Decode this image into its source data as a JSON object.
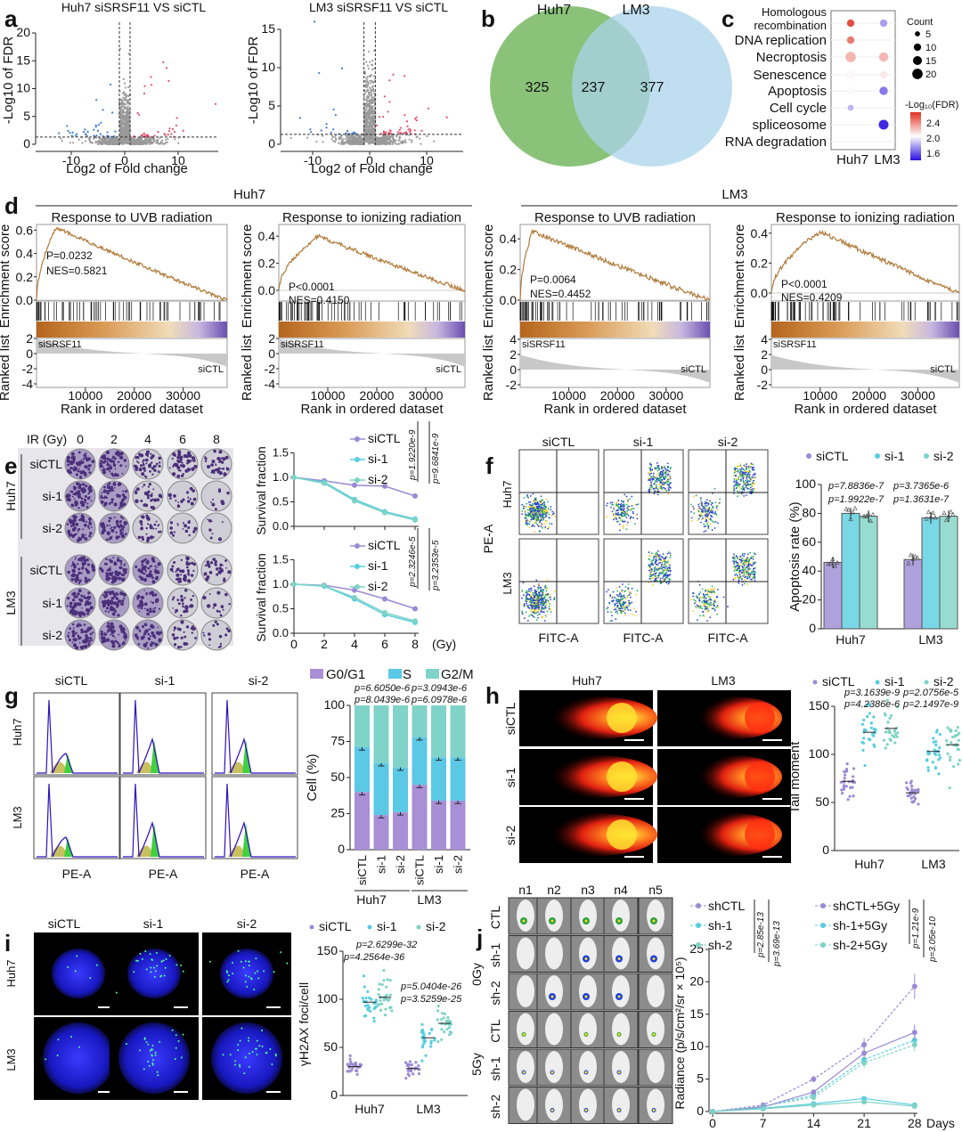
{
  "panel_labels": [
    "a",
    "b",
    "c",
    "d",
    "e",
    "f",
    "g",
    "h",
    "i",
    "j"
  ],
  "colors": {
    "siCTL": "#9b8ad3",
    "si1": "#58cde0",
    "si2": "#7ed3c5",
    "up": "#e0506a",
    "down": "#3d7cc9",
    "ns": "#9a9a9a",
    "venn_huh7": "#7dbb6a",
    "venn_lm3": "#a9d3ea",
    "G0G1": "#a98fd6",
    "S": "#5bc8e6",
    "G2M": "#7fd3c9"
  },
  "d_groups": [
    "Huh7",
    "LM3"
  ],
  "e_images": {
    "header": "IR (Gy)",
    "doses": [
      "0",
      "2",
      "4",
      "6",
      "8"
    ],
    "rows": [
      "siCTL",
      "si-1",
      "si-2",
      "siCTL",
      "si-1",
      "si-2"
    ],
    "groups": [
      "Huh7",
      "LM3"
    ]
  },
  "f_images": {
    "columns": [
      "siCTL",
      "si-1",
      "si-2"
    ],
    "rows": [
      "Huh7",
      "LM3"
    ],
    "ylabel": "PE-A",
    "xlabel": "FITC-A"
  },
  "g_images": {
    "columns": [
      "siCTL",
      "si-1",
      "si-2"
    ],
    "rows": [
      "Huh7",
      "LM3"
    ],
    "xlabel": "PE-A"
  },
  "h_images": {
    "columns": [
      "Huh7",
      "LM3"
    ],
    "rows": [
      "siCTL",
      "si-1",
      "si-2"
    ]
  },
  "i_images": {
    "columns": [
      "siCTL",
      "si-1",
      "si-2"
    ],
    "rows": [
      "Huh7",
      "LM3"
    ]
  },
  "j_images": {
    "columns": [
      "n1",
      "n2",
      "n3",
      "n4",
      "n5"
    ],
    "rows": [
      "CTL",
      "sh-1",
      "sh-2",
      "CTL",
      "sh-1",
      "sh-2"
    ],
    "groups": [
      "0Gy",
      "5Gy"
    ]
  },
  "chart_data": [
    {
      "type": "scatter",
      "title": "Huh7 siSRSF11 VS siCTL",
      "xlabel": "Log2 of Fold change",
      "ylabel": "-Log10 of FDR",
      "xticks": [
        "-10",
        "0",
        "10"
      ],
      "yticks": [
        "0",
        "5",
        "10",
        "15",
        "20"
      ],
      "xlim": [
        -17,
        17
      ],
      "ylim": [
        0,
        21
      ]
    },
    {
      "type": "scatter",
      "title": "LM3 siSRSF11 VS siCTL",
      "xlabel": "Log2 of Fold change",
      "ylabel": "-Log10 of FDR",
      "xticks": [
        "-10",
        "0",
        "10"
      ],
      "yticks": [
        "0",
        "5",
        "10",
        "15"
      ],
      "xlim": [
        -15,
        17
      ],
      "ylim": [
        0,
        16
      ]
    },
    {
      "type": "venn",
      "sets": [
        "Huh7",
        "LM3"
      ],
      "values": [
        "325",
        "237",
        "377"
      ]
    },
    {
      "type": "scatter",
      "subtype": "dotplot",
      "columns": [
        "Huh7",
        "LM3"
      ],
      "terms": [
        {
          "label": [
            "Homologous",
            "recombination"
          ],
          "Huh7": {
            "count": 8,
            "fdr": 2.6
          },
          "LM3": {
            "count": 8,
            "fdr": 1.8
          }
        },
        {
          "label": [
            "DNA replication"
          ],
          "Huh7": {
            "count": 8,
            "fdr": 2.45
          },
          "LM3": null
        },
        {
          "label": [
            "Necroptosis"
          ],
          "Huh7": {
            "count": 15,
            "fdr": 2.25
          },
          "LM3": {
            "count": 12,
            "fdr": 2.25
          }
        },
        {
          "label": [
            "Senescence"
          ],
          "Huh7": {
            "count": 7,
            "fdr": 2.02
          },
          "LM3": {
            "count": 6,
            "fdr": 2.08
          }
        },
        {
          "label": [
            "Apoptosis"
          ],
          "Huh7": {
            "count": 5,
            "fdr": 2.0
          },
          "LM3": {
            "count": 10,
            "fdr": 1.72
          }
        },
        {
          "label": [
            "Cell cycle"
          ],
          "Huh7": {
            "count": 5,
            "fdr": 1.85
          },
          "LM3": null
        },
        {
          "label": [
            "spliceosome"
          ],
          "Huh7": null,
          "LM3": {
            "count": 14,
            "fdr": 1.55
          }
        },
        {
          "label": [
            "RNA degradation"
          ],
          "Huh7": null,
          "LM3": null
        }
      ],
      "size_legend": {
        "title": "Count",
        "values": [
          "5",
          "10",
          "15",
          "20"
        ]
      },
      "color_legend": {
        "title": "-Log₁₀(FDR)",
        "ticks": [
          "2.4",
          "2.0",
          "1.6"
        ],
        "range": [
          1.5,
          2.7
        ]
      }
    },
    {
      "type": "line",
      "group": "Huh7",
      "title": "Response to UVB radiation",
      "ylabel": "Enrichment score",
      "ylabel2": "Ranked list",
      "xlabel": "Rank in ordered dataset",
      "p": "P=0.0232",
      "nes": "NES=0.5821",
      "es_peak": 0.62,
      "es_peak_rank": 4000,
      "n_ranks": 39000,
      "es_ticks": [
        "0.6",
        "0.4",
        "0.2",
        "0.0"
      ],
      "rank_ticks": [
        "2",
        "0",
        "-2",
        "-4"
      ],
      "xticks": [
        "10000",
        "20000",
        "30000"
      ],
      "pos_label": "siSRSF11",
      "neg_label": "siCTL"
    },
    {
      "type": "line",
      "group": "Huh7",
      "title": "Response to ionizing radiation",
      "ylabel": "Enrichment score",
      "ylabel2": "Ranked list",
      "xlabel": "Rank in ordered dataset",
      "p": "P<0.0001",
      "nes": "NES=0.4150",
      "es_peak": 0.4,
      "es_peak_rank": 8000,
      "n_ranks": 38000,
      "es_ticks": [
        "0.4",
        "0.2",
        "0.0"
      ],
      "rank_ticks": [
        "2",
        "0",
        "-2",
        "-4"
      ],
      "xticks": [
        "10000",
        "20000",
        "30000"
      ],
      "pos_label": "siSRSF11",
      "neg_label": "siCTL"
    },
    {
      "type": "line",
      "group": "LM3",
      "title": "Response to UVB radiation",
      "ylabel": "Enrichment score",
      "ylabel2": "Ranked list",
      "xlabel": "Rank in ordered dataset",
      "p": "P=0.0064",
      "nes": "NES=0.4452",
      "es_peak": 0.45,
      "es_peak_rank": 2500,
      "n_ranks": 39000,
      "es_ticks": [
        "0.4",
        "0.2",
        "0.0"
      ],
      "rank_ticks": [
        "4",
        "2",
        "0",
        "-2"
      ],
      "xticks": [
        "10000",
        "20000",
        "30000"
      ],
      "pos_label": "siSRSF11",
      "neg_label": "siCTL"
    },
    {
      "type": "line",
      "group": "LM3",
      "title": "Response to ionizing radiation",
      "ylabel": "Enrichment score",
      "ylabel2": "Ranked list",
      "xlabel": "Rank in ordered dataset",
      "p": "P<0.0001",
      "nes": "NES=0.4209",
      "es_peak": 0.41,
      "es_peak_rank": 10000,
      "n_ranks": 38500,
      "es_ticks": [
        "0.4",
        "0.2",
        "0.0"
      ],
      "rank_ticks": [
        "4",
        "2",
        "0",
        "-2"
      ],
      "xticks": [
        "10000",
        "20000",
        "30000"
      ],
      "pos_label": "siSRSF11",
      "neg_label": "siCTL"
    },
    {
      "type": "line",
      "group": "Huh7",
      "ylabel": "Survival fraction",
      "x": [
        0,
        2,
        4,
        6,
        8
      ],
      "xticks": [
        "0",
        "2",
        "4",
        "6",
        "8"
      ],
      "yticks": [
        "0.0",
        "0.5",
        "1.0",
        "1.5"
      ],
      "ylim": [
        0,
        1.5
      ],
      "series": [
        {
          "name": "siCTL",
          "values": [
            1,
            0.93,
            0.84,
            0.82,
            0.62
          ]
        },
        {
          "name": "si-1",
          "values": [
            1,
            0.9,
            0.55,
            0.3,
            0.15
          ]
        },
        {
          "name": "si-2",
          "values": [
            1,
            0.88,
            0.52,
            0.28,
            0.13
          ]
        }
      ],
      "pvalues": [
        "p=1.9220e-9",
        "p=9.6841e-9"
      ]
    },
    {
      "type": "line",
      "group": "LM3",
      "ylabel": "Survival fraction",
      "xunit": "(Gy)",
      "x": [
        0,
        2,
        4,
        6,
        8
      ],
      "xticks": [
        "0",
        "2",
        "4",
        "6",
        "8"
      ],
      "yticks": [
        "0.0",
        "0.5",
        "1.0",
        "1.5"
      ],
      "ylim": [
        0,
        1.5
      ],
      "series": [
        {
          "name": "siCTL",
          "values": [
            1,
            0.98,
            0.88,
            0.7,
            0.5
          ]
        },
        {
          "name": "si-1",
          "values": [
            1,
            0.96,
            0.7,
            0.38,
            0.22
          ]
        },
        {
          "name": "si-2",
          "values": [
            1,
            0.97,
            0.73,
            0.42,
            0.25
          ]
        }
      ],
      "pvalues": [
        "p=2.3246e-5",
        "p=3.2353e-5"
      ]
    },
    {
      "type": "bar",
      "ylabel": "Apoptosis rate (%)",
      "categories": [
        "Huh7",
        "LM3"
      ],
      "yticks": [
        "0",
        "20",
        "40",
        "60",
        "80",
        "100"
      ],
      "ylim": [
        0,
        100
      ],
      "series": [
        {
          "name": "siCTL",
          "values": [
            46,
            48
          ]
        },
        {
          "name": "si-1",
          "values": [
            80,
            77
          ]
        },
        {
          "name": "si-2",
          "values": [
            78,
            78
          ]
        }
      ],
      "pvalues": [
        "p=7.8836e-7",
        "p=1.9922e-7",
        "p=3.7365e-6",
        "p=1.3631e-7"
      ]
    },
    {
      "type": "bar",
      "stacked": true,
      "ylabel": "Cell (%)",
      "categories": [
        "siCTL",
        "si-1",
        "si-2",
        "siCTL",
        "si-1",
        "si-2"
      ],
      "groups": [
        "Huh7",
        "LM3"
      ],
      "yticks": [
        "0",
        "25",
        "50",
        "75",
        "100"
      ],
      "ylim": [
        0,
        100
      ],
      "series": [
        {
          "name": "G0/G1",
          "values": [
            40,
            24,
            26,
            45,
            34,
            34
          ]
        },
        {
          "name": "S",
          "values": [
            31,
            36,
            31,
            33,
            30,
            30
          ]
        },
        {
          "name": "G2/M",
          "values": [
            29,
            40,
            43,
            22,
            36,
            36
          ]
        }
      ],
      "pvalues": [
        "p=6.6050e-6",
        "p=3.0943e-6",
        "p=8.0439e-6",
        "p=6.0978e-6"
      ]
    },
    {
      "type": "scatter",
      "ylabel": "Tail moment",
      "categories": [
        "Huh7",
        "LM3"
      ],
      "yticks": [
        "0",
        "50",
        "100",
        "150"
      ],
      "ylim": [
        0,
        150
      ],
      "series": [
        {
          "name": "siCTL",
          "means": [
            72,
            60
          ]
        },
        {
          "name": "si-1",
          "means": [
            123,
            103
          ]
        },
        {
          "name": "si-2",
          "means": [
            127,
            110
          ]
        }
      ],
      "pvalues": [
        "p=3.1639e-9",
        "p=2.0756e-5",
        "p=4.2386e-6",
        "p=2.1497e-9"
      ]
    },
    {
      "type": "scatter",
      "ylabel": "γH2AX foci/cell",
      "categories": [
        "Huh7",
        "LM3"
      ],
      "yticks": [
        "0",
        "50",
        "100",
        "150"
      ],
      "ylim": [
        0,
        150
      ],
      "series": [
        {
          "name": "siCTL",
          "means": [
            30,
            28
          ]
        },
        {
          "name": "si-1",
          "means": [
            97,
            60
          ]
        },
        {
          "name": "si-2",
          "means": [
            102,
            75
          ]
        }
      ],
      "pvalues": [
        "p=2.6299e-32",
        "p=4.2564e-36",
        "p=5.0404e-26",
        "p=3.5259e-25"
      ]
    },
    {
      "type": "line",
      "ylabel": "Radiance (p/s/cm²/sr × 10⁵)",
      "xlabel": "Days",
      "x": [
        0,
        7,
        14,
        21,
        28
      ],
      "xticks": [
        "0",
        "7",
        "14",
        "21",
        "28"
      ],
      "yticks": [
        "0",
        "5",
        "10",
        "15",
        "20",
        "25"
      ],
      "ylim": [
        0,
        25
      ],
      "series": [
        {
          "name": "shCTL",
          "values": [
            0,
            1,
            5,
            10.3,
            19.3
          ]
        },
        {
          "name": "sh-1",
          "values": [
            0,
            0.8,
            2.5,
            8,
            11
          ]
        },
        {
          "name": "sh-2",
          "values": [
            0,
            0.8,
            2.2,
            7.5,
            10.3
          ]
        },
        {
          "name": "shCTL+5Gy",
          "values": [
            0,
            0.7,
            3,
            9,
            12.2
          ]
        },
        {
          "name": "sh-1+5Gy",
          "values": [
            0,
            0.5,
            1.2,
            2,
            1
          ]
        },
        {
          "name": "sh-2+5Gy",
          "values": [
            0,
            0.4,
            1,
            1.5,
            0.8
          ]
        }
      ],
      "pvalues": [
        "p=2.85e-13",
        "p=3.69e-13",
        "p=1.21e-9",
        "p=3.05e-10"
      ]
    }
  ]
}
